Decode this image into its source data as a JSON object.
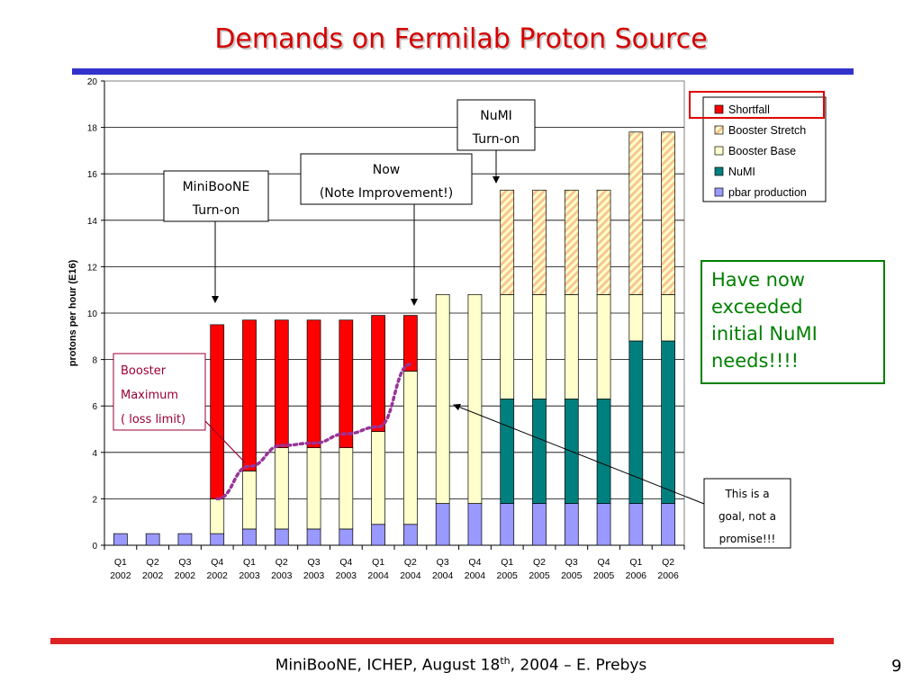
{
  "slide": {
    "title": "Demands on Fermilab Proton Source",
    "footer_main": "MiniBooNE, ICHEP, August 18",
    "footer_sup": "th",
    "footer_rest": ", 2004 – E. Prebys",
    "page_number": "9"
  },
  "colors": {
    "title": "#d40000",
    "shortfall": "#ff0000",
    "booster_stretch_fill": "#ffffcc",
    "booster_stretch_hatch": "#f7c690",
    "booster_base": "#ffffcc",
    "numi": "#007f7f",
    "pbar": "#9999ff",
    "top_bar": "#3333cc",
    "bottom_bar": "#dd2222",
    "green_box": "#008000",
    "red_box": "#e00000",
    "maroon": "#990033",
    "dotted_line": "#993399"
  },
  "chart_data": {
    "type": "bar",
    "stacked": true,
    "ylabel": "protons per hour (E16)",
    "ylim": [
      0,
      20
    ],
    "yticks": [
      0,
      2,
      4,
      6,
      8,
      10,
      12,
      14,
      16,
      18,
      20
    ],
    "grid": true,
    "legend_position": "top-right",
    "categories": [
      [
        "Q1",
        "2002"
      ],
      [
        "Q2",
        "2002"
      ],
      [
        "Q3",
        "2002"
      ],
      [
        "Q4",
        "2002"
      ],
      [
        "Q1",
        "2003"
      ],
      [
        "Q2",
        "2003"
      ],
      [
        "Q3",
        "2003"
      ],
      [
        "Q4",
        "2003"
      ],
      [
        "Q1",
        "2004"
      ],
      [
        "Q2",
        "2004"
      ],
      [
        "Q3",
        "2004"
      ],
      [
        "Q4",
        "2004"
      ],
      [
        "Q1",
        "2005"
      ],
      [
        "Q2",
        "2005"
      ],
      [
        "Q3",
        "2005"
      ],
      [
        "Q4",
        "2005"
      ],
      [
        "Q1",
        "2006"
      ],
      [
        "Q2",
        "2006"
      ]
    ],
    "series": [
      {
        "name": "pbar production",
        "values": [
          0.5,
          0.5,
          0.5,
          0.5,
          0.7,
          0.7,
          0.7,
          0.7,
          0.9,
          0.9,
          1.8,
          1.8,
          1.8,
          1.8,
          1.8,
          1.8,
          1.8,
          1.8
        ]
      },
      {
        "name": "NuMI",
        "values": [
          0,
          0,
          0,
          0,
          0,
          0,
          0,
          0,
          0,
          0,
          0,
          0,
          4.5,
          4.5,
          4.5,
          4.5,
          7.0,
          7.0
        ]
      },
      {
        "name": "Booster Base",
        "values": [
          0,
          0,
          0,
          1.5,
          2.5,
          3.5,
          3.5,
          3.5,
          4.0,
          6.6,
          9.0,
          9.0,
          4.5,
          4.5,
          4.5,
          4.5,
          2.0,
          2.0
        ]
      },
      {
        "name": "Booster Stretch",
        "values": [
          0,
          0,
          0,
          0,
          0,
          0,
          0,
          0,
          0,
          0,
          0,
          0,
          4.5,
          4.5,
          4.5,
          4.5,
          7.0,
          7.0
        ]
      },
      {
        "name": "Shortfall",
        "values": [
          0,
          0,
          0,
          7.5,
          6.5,
          5.5,
          5.5,
          5.5,
          5.0,
          2.4,
          0,
          0,
          0,
          0,
          0,
          0,
          0,
          0
        ]
      }
    ],
    "legend_order": [
      "Shortfall",
      "Booster Stretch",
      "Booster Base",
      "NuMI",
      "pbar production"
    ],
    "booster_maximum_curve": [
      {
        "x": 3,
        "y": 2.0
      },
      {
        "x": 4,
        "y": 3.4
      },
      {
        "x": 5,
        "y": 4.3
      },
      {
        "x": 6,
        "y": 4.4
      },
      {
        "x": 7,
        "y": 4.8
      },
      {
        "x": 8,
        "y": 5.1
      },
      {
        "x": 9,
        "y": 7.8
      }
    ]
  },
  "annotations": {
    "miniboone": [
      "MiniBooNE",
      "Turn-on"
    ],
    "now": [
      "Now",
      "(Note Improvement!)"
    ],
    "numi": [
      "NuMI",
      "Turn-on"
    ],
    "booster_max": [
      "Booster",
      "Maximum",
      "( loss limit)"
    ],
    "goal": [
      "This is a",
      "goal, not a",
      "promise!!!"
    ],
    "exceeded": [
      "Have now",
      "exceeded",
      "initial NuMI",
      "needs!!!!"
    ]
  }
}
